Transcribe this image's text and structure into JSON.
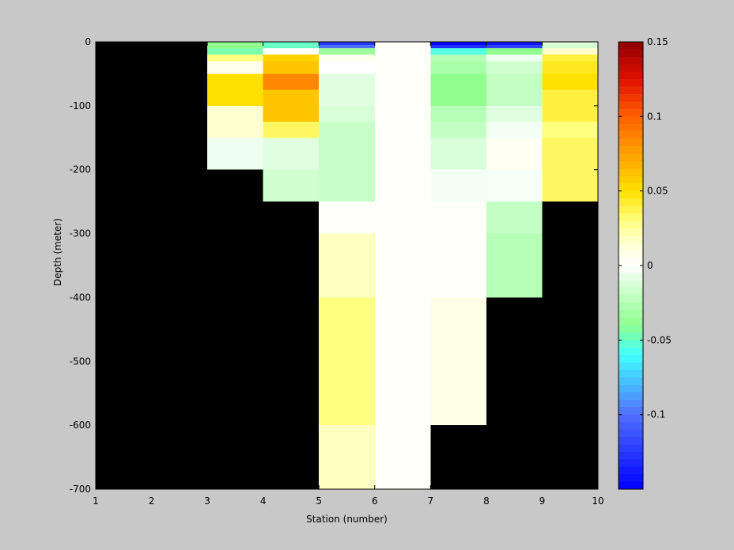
{
  "figure": {
    "background": "#c8c8c8",
    "missing_color": "#000000"
  },
  "chart_data": {
    "type": "heatmap",
    "title": "",
    "xlabel": "Station (number)",
    "ylabel": "Depth (meter)",
    "xlim": [
      1,
      10
    ],
    "ylim": [
      -700,
      0
    ],
    "x_ticks": [
      1,
      2,
      3,
      4,
      5,
      6,
      7,
      8,
      9,
      10
    ],
    "y_ticks": [
      0,
      -100,
      -200,
      -300,
      -400,
      -500,
      -600,
      -700
    ],
    "grid": false,
    "colorbar": {
      "limits": [
        -0.15,
        0.15
      ],
      "ticks": [
        0.15,
        0.1,
        0.05,
        0,
        -0.05,
        -0.1
      ],
      "colormap": [
        [
          -0.15,
          "#0000ff"
        ],
        [
          -0.1,
          "#5070ff"
        ],
        [
          -0.06,
          "#40ffff"
        ],
        [
          -0.04,
          "#90ff90"
        ],
        [
          -0.015,
          "#d0ffd0"
        ],
        [
          0,
          "#ffffff"
        ],
        [
          0.015,
          "#ffffd0"
        ],
        [
          0.03,
          "#ffff80"
        ],
        [
          0.05,
          "#ffe000"
        ],
        [
          0.075,
          "#ffa000"
        ],
        [
          0.1,
          "#ff6000"
        ],
        [
          0.125,
          "#e01000"
        ],
        [
          0.15,
          "#900000"
        ]
      ]
    },
    "cells": [
      {
        "x": [
          3,
          4
        ],
        "y": [
          0,
          -10
        ],
        "v": -0.04
      },
      {
        "x": [
          3,
          4
        ],
        "y": [
          -10,
          -20
        ],
        "v": -0.045
      },
      {
        "x": [
          3,
          4
        ],
        "y": [
          -20,
          -30
        ],
        "v": 0.03
      },
      {
        "x": [
          3,
          4
        ],
        "y": [
          -30,
          -50
        ],
        "v": 0.005
      },
      {
        "x": [
          3,
          4
        ],
        "y": [
          -50,
          -100
        ],
        "v": 0.05
      },
      {
        "x": [
          3,
          4
        ],
        "y": [
          -100,
          -150
        ],
        "v": 0.015
      },
      {
        "x": [
          3,
          4
        ],
        "y": [
          -150,
          -200
        ],
        "v": -0.005
      },
      {
        "x": [
          4,
          5
        ],
        "y": [
          0,
          -10
        ],
        "v": -0.05
      },
      {
        "x": [
          4,
          5
        ],
        "y": [
          -10,
          -20
        ],
        "v": 0.0
      },
      {
        "x": [
          4,
          5
        ],
        "y": [
          -20,
          -30
        ],
        "v": 0.055
      },
      {
        "x": [
          4,
          5
        ],
        "y": [
          -30,
          -50
        ],
        "v": 0.06
      },
      {
        "x": [
          4,
          5
        ],
        "y": [
          -50,
          -75
        ],
        "v": 0.085
      },
      {
        "x": [
          4,
          5
        ],
        "y": [
          -75,
          -125
        ],
        "v": 0.06
      },
      {
        "x": [
          4,
          5
        ],
        "y": [
          -125,
          -150
        ],
        "v": 0.035
      },
      {
        "x": [
          4,
          5
        ],
        "y": [
          -150,
          -200
        ],
        "v": -0.01
      },
      {
        "x": [
          4,
          5
        ],
        "y": [
          -200,
          -250
        ],
        "v": -0.015
      },
      {
        "x": [
          5,
          6
        ],
        "y": [
          0,
          -5
        ],
        "v": -0.125
      },
      {
        "x": [
          5,
          6
        ],
        "y": [
          -5,
          -10
        ],
        "v": -0.1
      },
      {
        "x": [
          5,
          6
        ],
        "y": [
          -10,
          -20
        ],
        "v": -0.035
      },
      {
        "x": [
          5,
          6
        ],
        "y": [
          -20,
          -30
        ],
        "v": 0.005
      },
      {
        "x": [
          5,
          6
        ],
        "y": [
          -30,
          -50
        ],
        "v": 0.0
      },
      {
        "x": [
          5,
          6
        ],
        "y": [
          -50,
          -100
        ],
        "v": -0.01
      },
      {
        "x": [
          5,
          6
        ],
        "y": [
          -100,
          -125
        ],
        "v": -0.012
      },
      {
        "x": [
          5,
          6
        ],
        "y": [
          -125,
          -250
        ],
        "v": -0.018
      },
      {
        "x": [
          5,
          6
        ],
        "y": [
          -250,
          -300
        ],
        "v": 0.002
      },
      {
        "x": [
          5,
          6
        ],
        "y": [
          -300,
          -400
        ],
        "v": 0.018
      },
      {
        "x": [
          5,
          6
        ],
        "y": [
          -400,
          -600
        ],
        "v": 0.03
      },
      {
        "x": [
          5,
          6
        ],
        "y": [
          -600,
          -700
        ],
        "v": 0.018
      },
      {
        "x": [
          6,
          7
        ],
        "y": [
          0,
          -700
        ],
        "v": 0.002
      },
      {
        "x": [
          7,
          8
        ],
        "y": [
          0,
          -5
        ],
        "v": -0.15
      },
      {
        "x": [
          7,
          8
        ],
        "y": [
          -5,
          -10
        ],
        "v": -0.13
      },
      {
        "x": [
          7,
          8
        ],
        "y": [
          -10,
          -20
        ],
        "v": -0.055
      },
      {
        "x": [
          7,
          8
        ],
        "y": [
          -20,
          -30
        ],
        "v": -0.025
      },
      {
        "x": [
          7,
          8
        ],
        "y": [
          -30,
          -50
        ],
        "v": -0.03
      },
      {
        "x": [
          7,
          8
        ],
        "y": [
          -50,
          -100
        ],
        "v": -0.04
      },
      {
        "x": [
          7,
          8
        ],
        "y": [
          -100,
          -125
        ],
        "v": -0.025
      },
      {
        "x": [
          7,
          8
        ],
        "y": [
          -125,
          -150
        ],
        "v": -0.02
      },
      {
        "x": [
          7,
          8
        ],
        "y": [
          -150,
          -200
        ],
        "v": -0.012
      },
      {
        "x": [
          7,
          8
        ],
        "y": [
          -200,
          -250
        ],
        "v": -0.004
      },
      {
        "x": [
          7,
          8
        ],
        "y": [
          -250,
          -400
        ],
        "v": 0.002
      },
      {
        "x": [
          7,
          8
        ],
        "y": [
          -400,
          -600
        ],
        "v": 0.008
      },
      {
        "x": [
          8,
          9
        ],
        "y": [
          0,
          -5
        ],
        "v": -0.14
      },
      {
        "x": [
          8,
          9
        ],
        "y": [
          -5,
          -10
        ],
        "v": -0.12
      },
      {
        "x": [
          8,
          9
        ],
        "y": [
          -10,
          -20
        ],
        "v": -0.04
      },
      {
        "x": [
          8,
          9
        ],
        "y": [
          -20,
          -30
        ],
        "v": -0.005
      },
      {
        "x": [
          8,
          9
        ],
        "y": [
          -30,
          -50
        ],
        "v": -0.015
      },
      {
        "x": [
          8,
          9
        ],
        "y": [
          -50,
          -100
        ],
        "v": -0.02
      },
      {
        "x": [
          8,
          9
        ],
        "y": [
          -100,
          -125
        ],
        "v": -0.01
      },
      {
        "x": [
          8,
          9
        ],
        "y": [
          -125,
          -150
        ],
        "v": -0.004
      },
      {
        "x": [
          8,
          9
        ],
        "y": [
          -150,
          -200
        ],
        "v": 0.004
      },
      {
        "x": [
          8,
          9
        ],
        "y": [
          -200,
          -250
        ],
        "v": -0.003
      },
      {
        "x": [
          8,
          9
        ],
        "y": [
          -250,
          -300
        ],
        "v": -0.02
      },
      {
        "x": [
          8,
          9
        ],
        "y": [
          -300,
          -400
        ],
        "v": -0.025
      },
      {
        "x": [
          9,
          10
        ],
        "y": [
          0,
          -5
        ],
        "v": -0.01
      },
      {
        "x": [
          9,
          10
        ],
        "y": [
          -5,
          -10
        ],
        "v": -0.015
      },
      {
        "x": [
          9,
          10
        ],
        "y": [
          -10,
          -20
        ],
        "v": 0.015
      },
      {
        "x": [
          9,
          10
        ],
        "y": [
          -20,
          -30
        ],
        "v": 0.04
      },
      {
        "x": [
          9,
          10
        ],
        "y": [
          -30,
          -50
        ],
        "v": 0.045
      },
      {
        "x": [
          9,
          10
        ],
        "y": [
          -50,
          -75
        ],
        "v": 0.05
      },
      {
        "x": [
          9,
          10
        ],
        "y": [
          -75,
          -100
        ],
        "v": 0.04
      },
      {
        "x": [
          9,
          10
        ],
        "y": [
          -100,
          -125
        ],
        "v": 0.04
      },
      {
        "x": [
          9,
          10
        ],
        "y": [
          -125,
          -150
        ],
        "v": 0.03
      },
      {
        "x": [
          9,
          10
        ],
        "y": [
          -150,
          -250
        ],
        "v": 0.035
      }
    ]
  }
}
